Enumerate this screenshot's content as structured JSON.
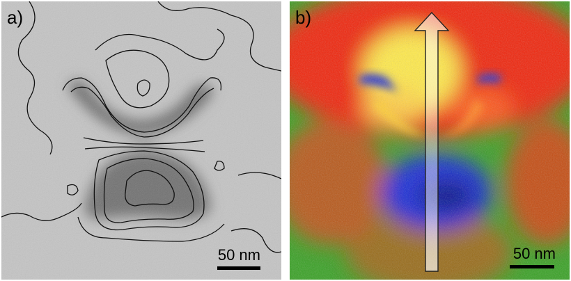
{
  "panel_a": {
    "label": "a)",
    "scale_label": "50 nm"
  },
  "panel_b": {
    "label": "b)",
    "scale_label": "50 nm"
  },
  "colors": {
    "tem_background": "#c2c2c2",
    "particle_shadow": "#6e6e6e",
    "contour": "#111111",
    "map_low": "#1326c8",
    "map_mid": "#2fae1e",
    "map_high": "#f21d08",
    "map_peak": "#fff45a",
    "arrow_fill": "#ffffff"
  }
}
